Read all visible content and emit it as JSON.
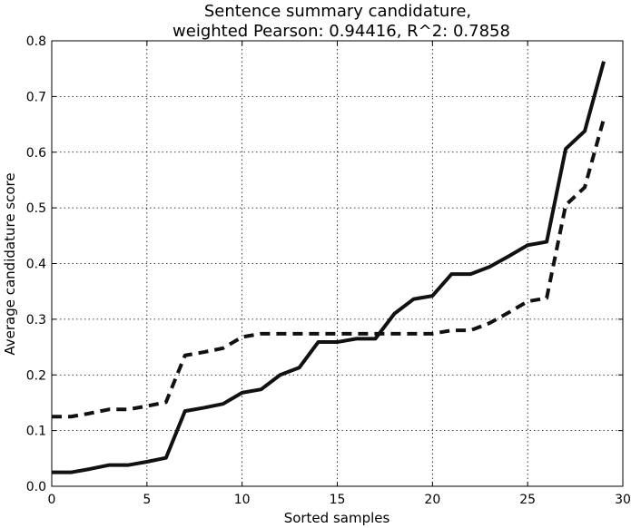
{
  "chart_data": {
    "type": "line",
    "title": [
      "Sentence summary candidature,",
      "weighted Pearson: 0.94416, R^2: 0.7858"
    ],
    "xlabel": "Sorted samples",
    "ylabel": "Average candidature score",
    "xlim": [
      0,
      30
    ],
    "ylim": [
      0,
      0.8
    ],
    "xticks": [
      0,
      5,
      10,
      15,
      20,
      25,
      30
    ],
    "yticks": [
      0.0,
      0.1,
      0.2,
      0.3,
      0.4,
      0.5,
      0.6,
      0.7,
      0.8
    ],
    "ytick_labels": [
      "0.0",
      "0.1",
      "0.2",
      "0.3",
      "0.4",
      "0.5",
      "0.6",
      "0.7",
      "0.8"
    ],
    "grid": true,
    "series": [
      {
        "style": "solid",
        "color": "#111111",
        "x": [
          0,
          1,
          2,
          3,
          4,
          5,
          6,
          7,
          8,
          9,
          10,
          11,
          12,
          13,
          14,
          15,
          16,
          17,
          18,
          19,
          20,
          21,
          22,
          23,
          24,
          25,
          26,
          27,
          28,
          29
        ],
        "values": [
          0.025,
          0.025,
          0.031,
          0.038,
          0.038,
          0.044,
          0.051,
          0.135,
          0.141,
          0.148,
          0.168,
          0.174,
          0.2,
          0.213,
          0.259,
          0.259,
          0.265,
          0.265,
          0.31,
          0.336,
          0.342,
          0.381,
          0.381,
          0.394,
          0.413,
          0.433,
          0.439,
          0.606,
          0.638,
          0.763
        ]
      },
      {
        "style": "dashed",
        "color": "#111111",
        "x": [
          0,
          1,
          2,
          3,
          4,
          5,
          6,
          7,
          8,
          9,
          10,
          11,
          12,
          13,
          14,
          15,
          16,
          17,
          18,
          19,
          20,
          21,
          22,
          23,
          24,
          25,
          26,
          27,
          28,
          29
        ],
        "values": [
          0.125,
          0.125,
          0.131,
          0.138,
          0.138,
          0.144,
          0.151,
          0.235,
          0.241,
          0.248,
          0.268,
          0.274,
          0.274,
          0.274,
          0.274,
          0.274,
          0.274,
          0.274,
          0.274,
          0.274,
          0.274,
          0.28,
          0.28,
          0.293,
          0.312,
          0.332,
          0.338,
          0.505,
          0.537,
          0.66
        ]
      }
    ]
  }
}
